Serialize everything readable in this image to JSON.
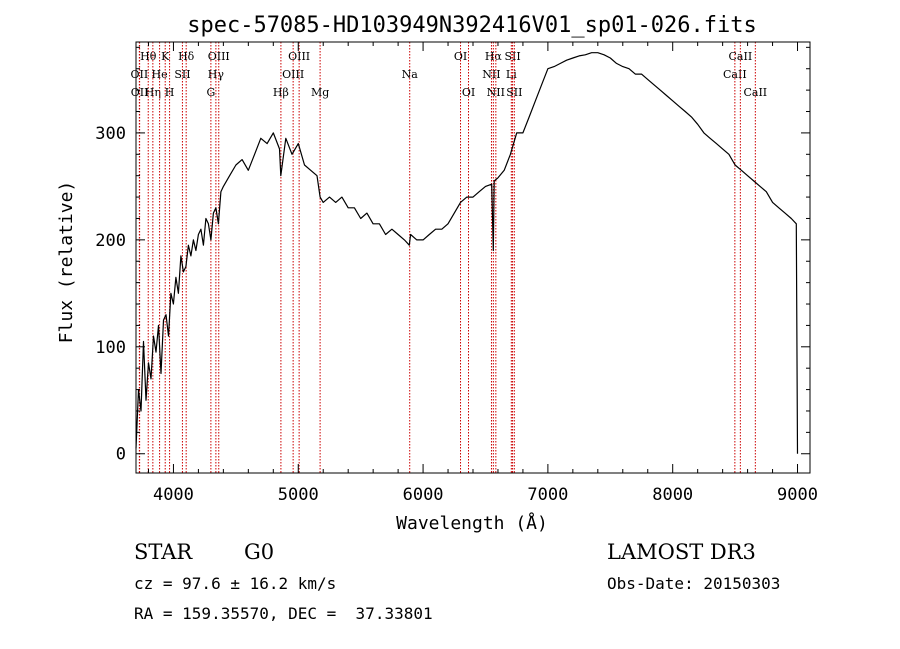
{
  "chart_data": {
    "type": "line",
    "title": "spec-57085-HD103949N392416V01_sp01-026.fits",
    "xlabel": "Wavelength (Å)",
    "ylabel": "Flux (relative)",
    "xlim": [
      3700,
      9100
    ],
    "ylim": [
      -18,
      385
    ],
    "xticks": [
      4000,
      5000,
      6000,
      7000,
      8000,
      9000
    ],
    "yticks": [
      0,
      100,
      200,
      300
    ],
    "series": [
      {
        "name": "spectrum",
        "x": [
          3700,
          3720,
          3740,
          3760,
          3780,
          3800,
          3820,
          3840,
          3860,
          3880,
          3900,
          3920,
          3940,
          3960,
          3980,
          4000,
          4020,
          4040,
          4060,
          4080,
          4100,
          4120,
          4140,
          4160,
          4180,
          4200,
          4220,
          4240,
          4260,
          4280,
          4300,
          4320,
          4340,
          4360,
          4380,
          4400,
          4450,
          4500,
          4550,
          4600,
          4650,
          4700,
          4750,
          4800,
          4850,
          4860,
          4900,
          4950,
          5000,
          5050,
          5100,
          5150,
          5175,
          5200,
          5250,
          5300,
          5350,
          5400,
          5450,
          5500,
          5550,
          5600,
          5650,
          5700,
          5750,
          5800,
          5850,
          5890,
          5900,
          5950,
          6000,
          6050,
          6100,
          6150,
          6200,
          6250,
          6300,
          6350,
          6400,
          6450,
          6500,
          6550,
          6563,
          6570,
          6600,
          6650,
          6700,
          6750,
          6800,
          6850,
          6900,
          6950,
          7000,
          7050,
          7100,
          7150,
          7200,
          7250,
          7300,
          7350,
          7400,
          7450,
          7500,
          7550,
          7600,
          7650,
          7700,
          7750,
          7800,
          7850,
          7900,
          7950,
          8000,
          8050,
          8100,
          8150,
          8200,
          8250,
          8300,
          8350,
          8400,
          8450,
          8500,
          8550,
          8600,
          8650,
          8700,
          8750,
          8800,
          8850,
          8900,
          8950,
          8990,
          9000
        ],
        "y": [
          5,
          60,
          40,
          105,
          50,
          85,
          70,
          110,
          95,
          120,
          75,
          125,
          130,
          110,
          150,
          140,
          165,
          150,
          185,
          170,
          175,
          195,
          185,
          200,
          190,
          205,
          210,
          195,
          220,
          215,
          200,
          225,
          230,
          215,
          245,
          250,
          260,
          270,
          275,
          265,
          280,
          295,
          290,
          300,
          285,
          260,
          295,
          280,
          290,
          270,
          265,
          260,
          240,
          235,
          240,
          235,
          240,
          230,
          230,
          220,
          225,
          215,
          215,
          205,
          210,
          205,
          200,
          195,
          205,
          200,
          200,
          205,
          210,
          210,
          215,
          225,
          235,
          240,
          240,
          245,
          250,
          252,
          190,
          255,
          258,
          265,
          280,
          300,
          300,
          315,
          330,
          345,
          360,
          362,
          365,
          368,
          370,
          372,
          373,
          375,
          375,
          373,
          370,
          365,
          362,
          360,
          355,
          355,
          350,
          345,
          340,
          335,
          330,
          325,
          320,
          315,
          308,
          300,
          295,
          290,
          285,
          280,
          270,
          265,
          260,
          255,
          250,
          245,
          235,
          230,
          225,
          220,
          215,
          0
        ]
      }
    ],
    "line_markers": [
      {
        "label": "Hθ",
        "wl": 3798,
        "row": 1
      },
      {
        "label": "OII",
        "wl": 3727,
        "row": 2
      },
      {
        "label": "OII",
        "wl": 3729,
        "row": 3
      },
      {
        "label": "Hη",
        "wl": 3835,
        "row": 3
      },
      {
        "label": "He",
        "wl": 3889,
        "row": 2
      },
      {
        "label": "K",
        "wl": 3934,
        "row": 1
      },
      {
        "label": "H",
        "wl": 3969,
        "row": 3
      },
      {
        "label": "SII",
        "wl": 4072,
        "row": 2
      },
      {
        "label": "Hδ",
        "wl": 4102,
        "row": 1
      },
      {
        "label": "G",
        "wl": 4300,
        "row": 3
      },
      {
        "label": "Hγ",
        "wl": 4340,
        "row": 2
      },
      {
        "label": "OIII",
        "wl": 4363,
        "row": 1
      },
      {
        "label": "Hβ",
        "wl": 4861,
        "row": 3
      },
      {
        "label": "OIII",
        "wl": 4959,
        "row": 2
      },
      {
        "label": "OIII",
        "wl": 5007,
        "row": 1
      },
      {
        "label": "Mg",
        "wl": 5175,
        "row": 3
      },
      {
        "label": "Na",
        "wl": 5893,
        "row": 2
      },
      {
        "label": "OI",
        "wl": 6300,
        "row": 1
      },
      {
        "label": "OI",
        "wl": 6364,
        "row": 3
      },
      {
        "label": "NII",
        "wl": 6548,
        "row": 2
      },
      {
        "label": "Hα",
        "wl": 6563,
        "row": 1
      },
      {
        "label": "NII",
        "wl": 6583,
        "row": 3
      },
      {
        "label": "SII",
        "wl": 6717,
        "row": 1
      },
      {
        "label": "Li",
        "wl": 6707,
        "row": 2
      },
      {
        "label": "SII",
        "wl": 6731,
        "row": 3
      },
      {
        "label": "CaII",
        "wl": 8498,
        "row": 2
      },
      {
        "label": "CaII",
        "wl": 8542,
        "row": 1
      },
      {
        "label": "CaII",
        "wl": 8662,
        "row": 3
      }
    ]
  },
  "info": {
    "class_label": "STAR",
    "subclass": "G0",
    "survey": "LAMOST DR3",
    "cz": "cz = 97.6 ± 16.2 km/s",
    "obs_date": "Obs-Date: 20150303",
    "coords": "RA = 159.35570, DEC =  37.33801"
  },
  "colors": {
    "line": "#000000",
    "marker": "#cc0000",
    "background": "#ffffff"
  }
}
